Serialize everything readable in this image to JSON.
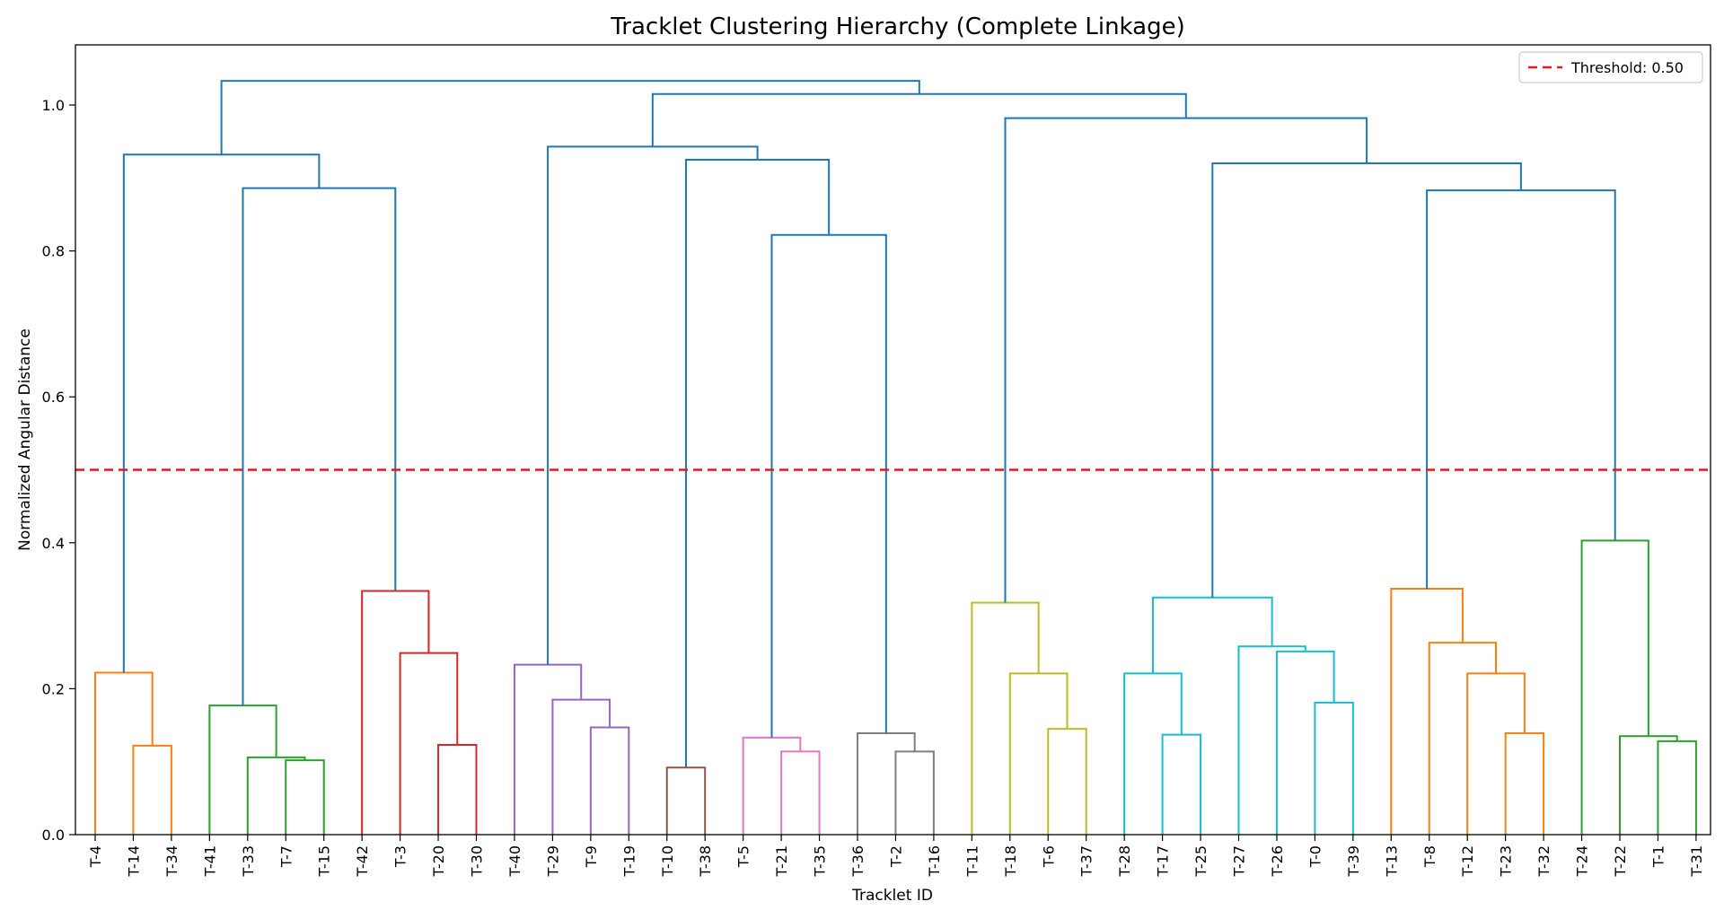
{
  "chart_data": {
    "type": "dendrogram",
    "title": "Tracklet Clustering Hierarchy (Complete Linkage)",
    "xlabel": "Tracklet ID",
    "ylabel": "Normalized Angular Distance",
    "ylim": [
      0,
      1.085
    ],
    "yticks": [
      0.0,
      0.2,
      0.4,
      0.6,
      0.8,
      1.0
    ],
    "ytick_labels": [
      "0.0",
      "0.2",
      "0.4",
      "0.6",
      "0.8",
      "1.0"
    ],
    "leaves": [
      "T-4",
      "T-14",
      "T-34",
      "T-41",
      "T-33",
      "T-7",
      "T-15",
      "T-42",
      "T-3",
      "T-20",
      "T-30",
      "T-40",
      "T-29",
      "T-9",
      "T-19",
      "T-10",
      "T-38",
      "T-5",
      "T-21",
      "T-35",
      "T-36",
      "T-2",
      "T-16",
      "T-11",
      "T-18",
      "T-6",
      "T-37",
      "T-28",
      "T-17",
      "T-25",
      "T-27",
      "T-26",
      "T-0",
      "T-39",
      "T-13",
      "T-8",
      "T-12",
      "T-23",
      "T-32",
      "T-24",
      "T-22",
      "T-1",
      "T-31"
    ],
    "threshold": {
      "value": 0.5,
      "label": "Threshold: 0.50",
      "color": "#e31a1c"
    },
    "legend_position": "top-right",
    "link_colors": {
      "C0": "#1f77b4",
      "C1": "#ff7f0e",
      "C2": "#2ca02c",
      "C3": "#d62728",
      "C4": "#9467bd",
      "C5": "#8c564b",
      "C6": "#e377c2",
      "C7": "#7f7f7f",
      "C8": "#bcbd22",
      "C9": "#17becf"
    },
    "merges": [
      {
        "id": "a1",
        "left": "T-14",
        "right": "T-34",
        "height": 0.122,
        "color": "C1"
      },
      {
        "id": "a2",
        "left": "T-4",
        "right": "a1",
        "height": 0.222,
        "color": "C1"
      },
      {
        "id": "b1",
        "left": "T-7",
        "right": "T-15",
        "height": 0.102,
        "color": "C2"
      },
      {
        "id": "b2",
        "left": "T-33",
        "right": "b1",
        "height": 0.106,
        "color": "C2"
      },
      {
        "id": "b3",
        "left": "T-41",
        "right": "b2",
        "height": 0.177,
        "color": "C2"
      },
      {
        "id": "c1",
        "left": "T-20",
        "right": "T-30",
        "height": 0.123,
        "color": "C3"
      },
      {
        "id": "c2",
        "left": "T-3",
        "right": "c1",
        "height": 0.249,
        "color": "C3"
      },
      {
        "id": "c3",
        "left": "T-42",
        "right": "c2",
        "height": 0.334,
        "color": "C3"
      },
      {
        "id": "d1",
        "left": "T-9",
        "right": "T-19",
        "height": 0.147,
        "color": "C4"
      },
      {
        "id": "d2",
        "left": "T-29",
        "right": "d1",
        "height": 0.185,
        "color": "C4"
      },
      {
        "id": "d3",
        "left": "T-40",
        "right": "d2",
        "height": 0.233,
        "color": "C4"
      },
      {
        "id": "e1",
        "left": "T-10",
        "right": "T-38",
        "height": 0.092,
        "color": "C5"
      },
      {
        "id": "f1",
        "left": "T-21",
        "right": "T-35",
        "height": 0.114,
        "color": "C6"
      },
      {
        "id": "f2",
        "left": "T-5",
        "right": "f1",
        "height": 0.133,
        "color": "C6"
      },
      {
        "id": "g1",
        "left": "T-2",
        "right": "T-16",
        "height": 0.114,
        "color": "C7"
      },
      {
        "id": "g2",
        "left": "T-36",
        "right": "g1",
        "height": 0.139,
        "color": "C7"
      },
      {
        "id": "h1",
        "left": "T-6",
        "right": "T-37",
        "height": 0.145,
        "color": "C8"
      },
      {
        "id": "h2",
        "left": "T-18",
        "right": "h1",
        "height": 0.221,
        "color": "C8"
      },
      {
        "id": "h3",
        "left": "T-11",
        "right": "h2",
        "height": 0.318,
        "color": "C8"
      },
      {
        "id": "i1",
        "left": "T-17",
        "right": "T-25",
        "height": 0.137,
        "color": "C9"
      },
      {
        "id": "i2",
        "left": "T-28",
        "right": "i1",
        "height": 0.221,
        "color": "C9"
      },
      {
        "id": "i3",
        "left": "T-0",
        "right": "T-39",
        "height": 0.181,
        "color": "C9"
      },
      {
        "id": "i4",
        "left": "T-26",
        "right": "i3",
        "height": 0.251,
        "color": "C9"
      },
      {
        "id": "i5",
        "left": "T-27",
        "right": "i4",
        "height": 0.258,
        "color": "C9"
      },
      {
        "id": "i6",
        "left": "i2",
        "right": "i5",
        "height": 0.325,
        "color": "C9"
      },
      {
        "id": "j1",
        "left": "T-23",
        "right": "T-32",
        "height": 0.139,
        "color": "C1"
      },
      {
        "id": "j2",
        "left": "T-12",
        "right": "j1",
        "height": 0.221,
        "color": "C1"
      },
      {
        "id": "j3",
        "left": "T-8",
        "right": "j2",
        "height": 0.263,
        "color": "C1"
      },
      {
        "id": "j4",
        "left": "T-13",
        "right": "j3",
        "height": 0.337,
        "color": "C1"
      },
      {
        "id": "k1",
        "left": "T-1",
        "right": "T-31",
        "height": 0.128,
        "color": "C2"
      },
      {
        "id": "k2",
        "left": "T-22",
        "right": "k1",
        "height": 0.135,
        "color": "C2"
      },
      {
        "id": "k3",
        "left": "T-24",
        "right": "k2",
        "height": 0.403,
        "color": "C2"
      },
      {
        "id": "m1",
        "left": "b3",
        "right": "c3",
        "height": 0.886,
        "color": "C0"
      },
      {
        "id": "m2",
        "left": "a2",
        "right": "m1",
        "height": 0.932,
        "color": "C0"
      },
      {
        "id": "n1",
        "left": "f2",
        "right": "g2",
        "height": 0.822,
        "color": "C0"
      },
      {
        "id": "n2",
        "left": "e1",
        "right": "n1",
        "height": 0.925,
        "color": "C0"
      },
      {
        "id": "n3",
        "left": "d3",
        "right": "n2",
        "height": 0.943,
        "color": "C0"
      },
      {
        "id": "p1",
        "left": "j4",
        "right": "k3",
        "height": 0.883,
        "color": "C0"
      },
      {
        "id": "p2",
        "left": "i6",
        "right": "p1",
        "height": 0.92,
        "color": "C0"
      },
      {
        "id": "p3",
        "left": "h3",
        "right": "p2",
        "height": 0.982,
        "color": "C0"
      },
      {
        "id": "q1",
        "left": "n3",
        "right": "p3",
        "height": 1.015,
        "color": "C0"
      },
      {
        "id": "q2",
        "left": "m2",
        "right": "q1",
        "height": 1.033,
        "color": "C0"
      }
    ]
  }
}
